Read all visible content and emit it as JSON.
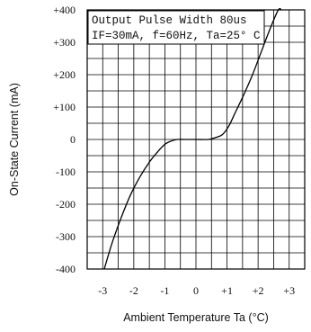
{
  "chart_data": {
    "type": "line",
    "title": "",
    "xlabel": "Ambient Temperature Ta (°C)",
    "ylabel": "On-State Current (mA)",
    "xlim": [
      -3.5,
      3.5
    ],
    "ylim": [
      -400,
      400
    ],
    "x_ticks": [
      -3,
      -2,
      -1,
      0,
      1,
      2,
      3
    ],
    "x_tick_labels": [
      "-3",
      "-2",
      "-1",
      "0",
      "+1",
      "+2",
      "+3"
    ],
    "y_ticks": [
      400,
      300,
      200,
      100,
      0,
      -100,
      -200,
      -300,
      -400
    ],
    "y_tick_labels": [
      "+400",
      "+300",
      "+200",
      "+100",
      "0",
      "-100",
      "-200",
      "-300",
      "-400"
    ],
    "grid": true,
    "grid_step_x": 0.5,
    "grid_step_y": 50,
    "legend_lines": [
      "Output Pulse Width 80us",
      "IF=30mA, f=60Hz, Ta=25° C"
    ],
    "legend_position": "top-left",
    "series": [
      {
        "name": "",
        "color": "#000000",
        "x": [
          -2.95,
          -2.7,
          -2.4,
          -2.1,
          -1.8,
          -1.5,
          -1.25,
          -1.0,
          -0.8,
          -0.6,
          -0.4,
          0.0,
          0.4,
          0.6,
          0.85,
          1.05,
          1.25,
          1.5,
          1.8,
          2.1,
          2.4,
          2.65,
          2.75
        ],
        "y": [
          -400,
          -320,
          -240,
          -170,
          -115,
          -70,
          -40,
          -15,
          -5,
          0,
          0,
          0,
          0,
          5,
          15,
          40,
          80,
          130,
          195,
          270,
          345,
          400,
          400
        ]
      }
    ]
  }
}
